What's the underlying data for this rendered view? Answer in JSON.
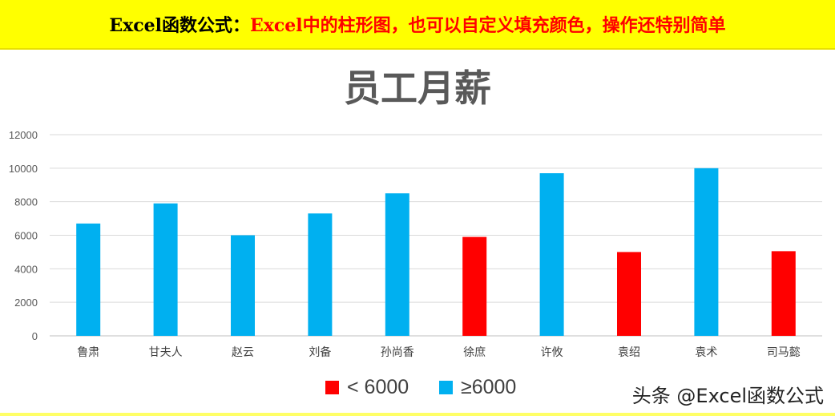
{
  "banner": {
    "lead": "Excel函数公式：",
    "rest": "Excel中的柱形图，也可以自定义填充颜色，操作还特别简单"
  },
  "watermark": "头条 @Excel函数公式",
  "colors": {
    "low": "#ff0000",
    "high": "#00b0f0",
    "banner_bg": "#ffff00"
  },
  "chart_data": {
    "type": "bar",
    "title": "员工月薪",
    "categories": [
      "鲁肃",
      "甘夫人",
      "赵云",
      "刘备",
      "孙尚香",
      "徐庶",
      "许攸",
      "袁绍",
      "袁术",
      "司马懿"
    ],
    "values": [
      6700,
      7900,
      6000,
      7300,
      8500,
      5900,
      9700,
      5000,
      10000,
      5050
    ],
    "ylim": [
      0,
      12000
    ],
    "yticks": [
      0,
      2000,
      4000,
      6000,
      8000,
      10000,
      12000
    ],
    "grid": true,
    "threshold": 6000,
    "legend": [
      {
        "label": "< 6000",
        "color": "#ff0000"
      },
      {
        "label": "≥6000",
        "color": "#00b0f0"
      }
    ],
    "legend_position": "bottom"
  }
}
